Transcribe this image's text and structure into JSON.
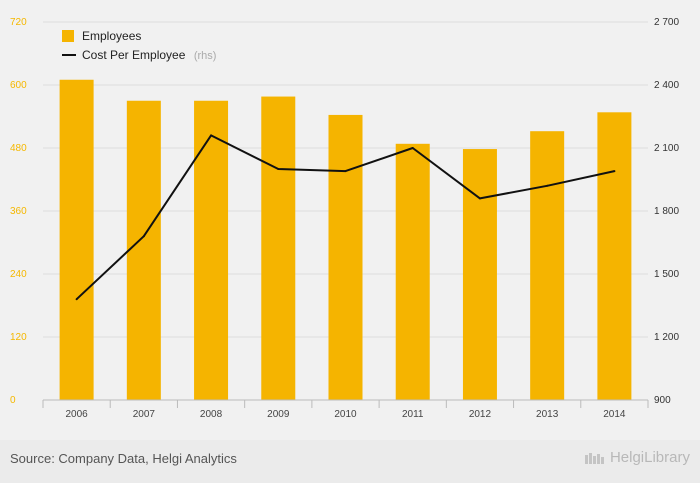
{
  "chart_data": {
    "type": "bar",
    "categories": [
      "2006",
      "2007",
      "2008",
      "2009",
      "2010",
      "2011",
      "2012",
      "2013",
      "2014"
    ],
    "series": [
      {
        "name": "Employees",
        "type": "bar",
        "axis": "left",
        "color": "#f5b400",
        "values": [
          610,
          570,
          570,
          578,
          543,
          488,
          478,
          512,
          548
        ]
      },
      {
        "name": "Cost Per Employee",
        "name_suffix": "(rhs)",
        "type": "line",
        "axis": "right",
        "color": "#111111",
        "values": [
          1380,
          1680,
          2160,
          2000,
          1990,
          2100,
          1860,
          1920,
          1990
        ]
      }
    ],
    "y_left": {
      "min": 0,
      "max": 720,
      "ticks": [
        0,
        120,
        240,
        360,
        480,
        600,
        720
      ],
      "tick_labels": [
        "0",
        "120",
        "240",
        "360",
        "480",
        "600",
        "720"
      ],
      "color": "#f5b800"
    },
    "y_right": {
      "min": 900,
      "max": 2700,
      "ticks": [
        900,
        1200,
        1500,
        1800,
        2100,
        2400,
        2700
      ],
      "tick_labels": [
        "900",
        "1 200",
        "1 500",
        "1 800",
        "2 100",
        "2 400",
        "2 700"
      ]
    },
    "grid": true,
    "legend_position": "top-left"
  },
  "footer": {
    "source": "Source: Company Data, Helgi Analytics",
    "brand": "HelgiLibrary"
  }
}
